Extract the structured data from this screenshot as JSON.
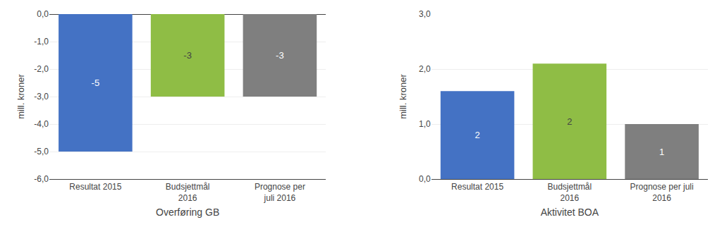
{
  "chart_data": [
    {
      "type": "bar",
      "categories": [
        "Resultat 2015",
        "Budsjettmål\n2016",
        "Prognose per\njuli 2016"
      ],
      "values": [
        -5,
        -3,
        -3
      ],
      "colors": [
        "#4472C4",
        "#8FBD45",
        "#7F7F7F"
      ],
      "data_labels": true,
      "ylabel": "mill. kroner",
      "xlabel": "Overføring GB",
      "ylim": [
        -6.0,
        0.0
      ],
      "yticks": [
        {
          "value": 0.0,
          "label": "0,0"
        },
        {
          "value": -1.0,
          "label": "-1,0"
        },
        {
          "value": -2.0,
          "label": "-2,0"
        },
        {
          "value": -3.0,
          "label": "-3,0"
        },
        {
          "value": -4.0,
          "label": "-4,0"
        },
        {
          "value": -5.0,
          "label": "-5,0"
        },
        {
          "value": -6.0,
          "label": "-6,0"
        }
      ],
      "grid": true
    },
    {
      "type": "bar",
      "categories": [
        "Resultat 2015",
        "Budsjettmål\n2016",
        "Prognose per juli\n2016"
      ],
      "values": [
        1.6,
        2.1,
        1.0
      ],
      "value_labels": [
        "2",
        "2",
        "1"
      ],
      "colors": [
        "#4472C4",
        "#8FBD45",
        "#7F7F7F"
      ],
      "data_labels": true,
      "ylabel": "mill. kroner",
      "xlabel": "Aktivitet BOA",
      "ylim": [
        0.0,
        3.0
      ],
      "yticks": [
        {
          "value": 0.0,
          "label": "0,0"
        },
        {
          "value": 1.0,
          "label": "1,0"
        },
        {
          "value": 2.0,
          "label": "2,0"
        },
        {
          "value": 3.0,
          "label": "3,0"
        }
      ],
      "grid": true
    }
  ]
}
